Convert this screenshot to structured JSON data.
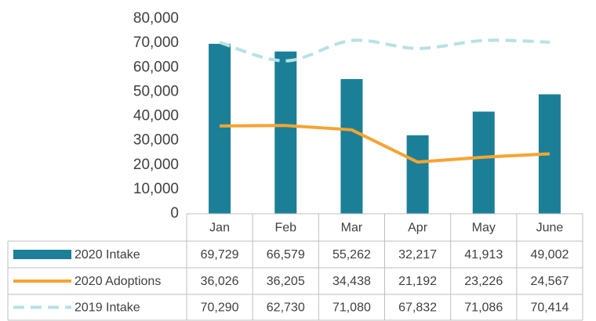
{
  "chart_data": {
    "type": "bar",
    "categories": [
      "Jan",
      "Feb",
      "Mar",
      "Apr",
      "May",
      "June"
    ],
    "series": [
      {
        "name": "2020 Intake",
        "type": "bar",
        "color": "#1b7f98",
        "values": [
          69729,
          66579,
          55262,
          32217,
          41913,
          49002
        ],
        "value_labels": [
          "69,729",
          "66,579",
          "55,262",
          "32,217",
          "41,913",
          "49,002"
        ]
      },
      {
        "name": "2020 Adoptions",
        "type": "line",
        "color": "#f5a432",
        "values": [
          36026,
          36205,
          34438,
          21192,
          23226,
          24567
        ],
        "value_labels": [
          "36,026",
          "36,205",
          "34,438",
          "21,192",
          "23,226",
          "24,567"
        ]
      },
      {
        "name": "2019 Intake",
        "type": "line",
        "dashed": true,
        "smooth": true,
        "color": "#b8e1e3",
        "values": [
          70290,
          62730,
          71080,
          67832,
          71086,
          70414
        ],
        "value_labels": [
          "70,290",
          "62,730",
          "71,080",
          "67,832",
          "71,086",
          "70,414"
        ]
      }
    ],
    "ylim": [
      0,
      80000
    ],
    "yticks": [
      0,
      {
        "value": 10000,
        "label": "10,000"
      },
      {
        "value": 20000,
        "label": "20,000"
      },
      {
        "value": 30000,
        "label": "30,000"
      },
      {
        "value": 40000,
        "label": "40,000"
      },
      {
        "value": 50000,
        "label": "50,000"
      },
      {
        "value": 60000,
        "label": "60,000"
      },
      {
        "value": 70000,
        "label": "70,000"
      },
      {
        "value": 80000,
        "label": "80,000"
      }
    ],
    "grid": false
  }
}
